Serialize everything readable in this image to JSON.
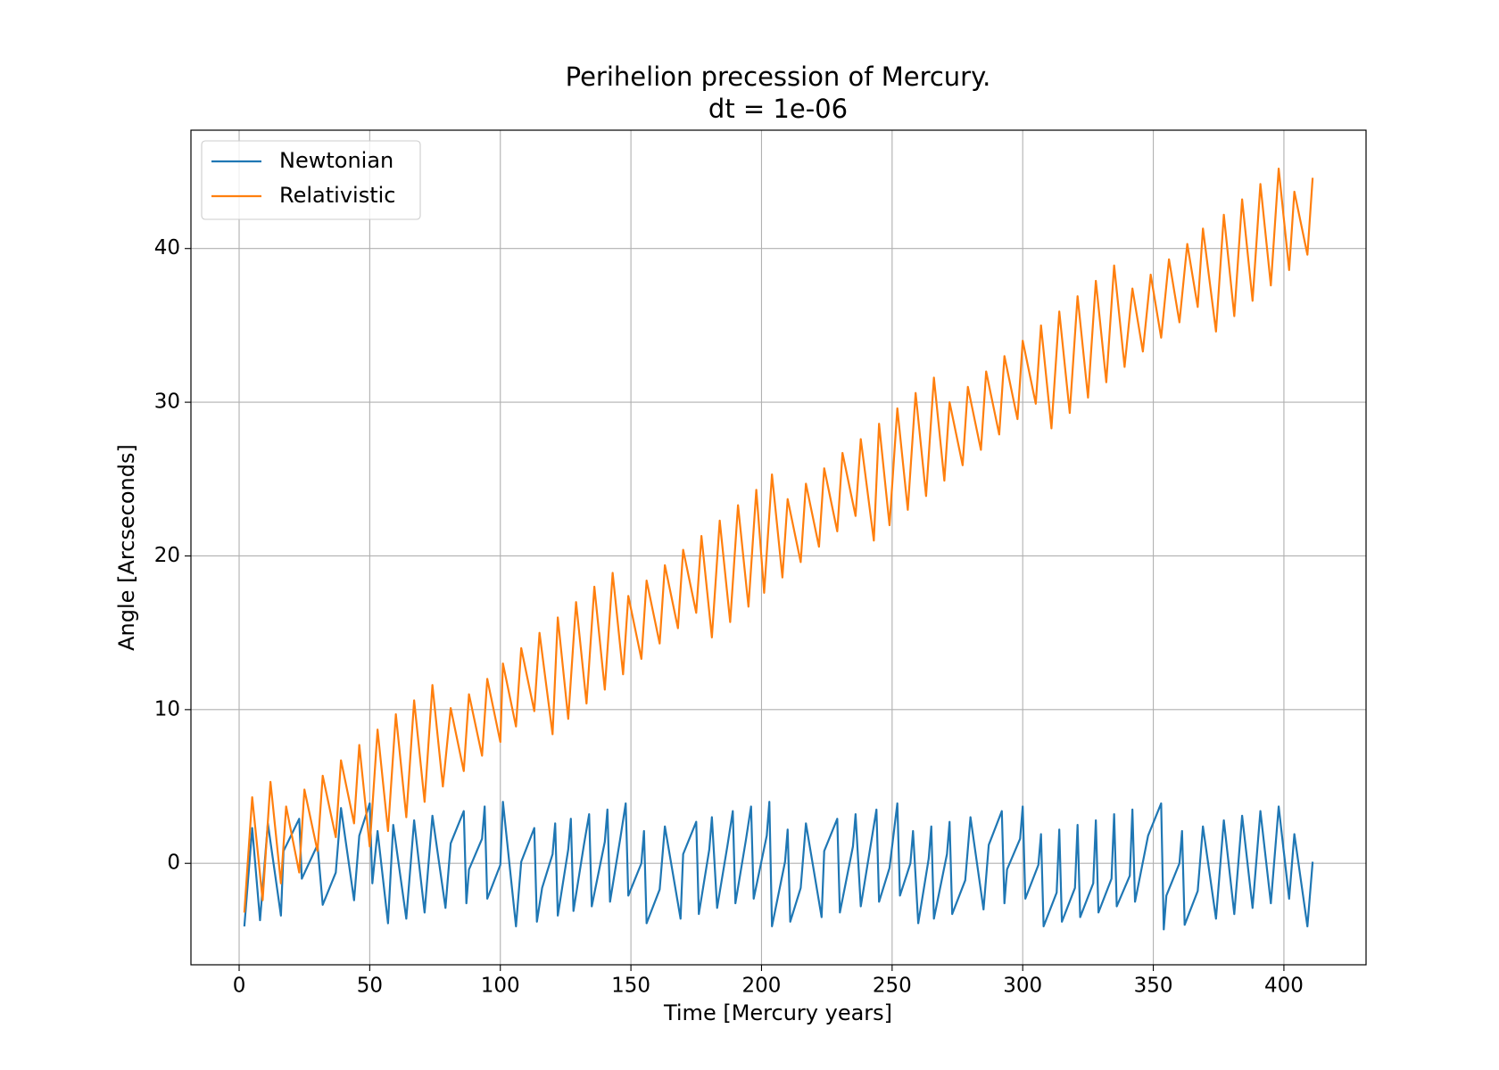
{
  "chart_data": {
    "type": "line",
    "title": "Perihelion precession of Mercury.",
    "subtitle": "dt = 1e-06",
    "x_label": "Time [Mercury years]",
    "y_label": "Angle [Arcseconds]",
    "xlim": [
      -18.45,
      431.45
    ],
    "ylim": [
      -6.6,
      47.7
    ],
    "xticks": [
      0,
      50,
      100,
      150,
      200,
      250,
      300,
      350,
      400
    ],
    "yticks": [
      0,
      10,
      20,
      30,
      40
    ],
    "grid": true,
    "legend_location": "upper left",
    "series": [
      {
        "name": "Newtonian",
        "color": "#1f77b4",
        "x": [
          2,
          5,
          8,
          11,
          16,
          17,
          23,
          24,
          30,
          32,
          37,
          39,
          44,
          46,
          50,
          51,
          53,
          57,
          59,
          64,
          67,
          71,
          74,
          79,
          81,
          86,
          87,
          88,
          93,
          94,
          95,
          100,
          101,
          106,
          108,
          113,
          114,
          116,
          120,
          121,
          122,
          126,
          127,
          128,
          132,
          134,
          135,
          140,
          141,
          142,
          146,
          148,
          149,
          154,
          155,
          156,
          161,
          163,
          169,
          170,
          175,
          176,
          180,
          181,
          183,
          187,
          189,
          190,
          194,
          196,
          197,
          202,
          203,
          204,
          209,
          210,
          211,
          215,
          217,
          223,
          224,
          229,
          230,
          235,
          236,
          238,
          242,
          244,
          245,
          249,
          252,
          253,
          257,
          258,
          260,
          264,
          265,
          266,
          271,
          272,
          273,
          278,
          280,
          285,
          287,
          292,
          293,
          294,
          299,
          300,
          301,
          306,
          307,
          308,
          313,
          314,
          315,
          320,
          321,
          322,
          327,
          328,
          329,
          334,
          335,
          336,
          341,
          342,
          343,
          348,
          353,
          354,
          355,
          360,
          361,
          362,
          367,
          369,
          374,
          377,
          381,
          384,
          388,
          391,
          395,
          398,
          402,
          404,
          409,
          411
        ],
        "values": [
          -4.1,
          2.3,
          -3.7,
          2.6,
          -3.4,
          0.8,
          2.9,
          -1.0,
          1.2,
          -2.7,
          -0.6,
          3.6,
          -2.4,
          1.8,
          3.9,
          -1.3,
          2.1,
          -3.9,
          2.5,
          -3.6,
          2.8,
          -3.2,
          3.1,
          -2.9,
          1.3,
          3.4,
          -2.6,
          -0.4,
          1.6,
          3.7,
          -2.3,
          -0.1,
          4.0,
          -4.1,
          0.1,
          2.3,
          -3.8,
          -1.6,
          0.6,
          2.6,
          -3.4,
          0.9,
          2.9,
          -3.1,
          1.2,
          3.2,
          -2.8,
          1.4,
          3.5,
          -2.5,
          1.7,
          3.9,
          -2.1,
          0,
          2.1,
          -3.9,
          -1.7,
          2.4,
          -3.6,
          0.6,
          2.7,
          -3.3,
          0.9,
          3.0,
          -2.9,
          1.2,
          3.4,
          -2.6,
          1.5,
          3.7,
          -2.3,
          1.8,
          4.0,
          -4.1,
          0.1,
          2.2,
          -3.8,
          -1.6,
          2.6,
          -3.5,
          0.8,
          2.9,
          -3.2,
          1.1,
          3.2,
          -2.8,
          1.4,
          3.5,
          -2.5,
          -0.3,
          3.9,
          -2.1,
          0,
          2.1,
          -3.9,
          0.3,
          2.4,
          -3.6,
          0.6,
          2.7,
          -3.3,
          -1.1,
          3.0,
          -3.0,
          1.2,
          3.4,
          -2.6,
          -0.4,
          1.6,
          3.7,
          -2.3,
          -0.1,
          1.9,
          -4.1,
          -1.9,
          2.2,
          -3.8,
          -1.6,
          2.5,
          -3.5,
          -1.3,
          2.8,
          -3.2,
          -1.0,
          3.2,
          -2.8,
          -0.8,
          3.5,
          -2.5,
          1.8,
          3.9,
          -4.3,
          -2.1,
          0,
          2.1,
          -4.0,
          -1.8,
          2.4,
          -3.6,
          2.8,
          -3.3,
          3.1,
          -2.9,
          3.4,
          -2.6,
          3.7,
          -2.3,
          1.9,
          -4.1,
          0.1
        ]
      },
      {
        "name": "Relativistic",
        "color": "#ff7f0e",
        "x": [
          2,
          5,
          9,
          12,
          16,
          18,
          23,
          25,
          30,
          32,
          37,
          39,
          44,
          46,
          50,
          53,
          57,
          60,
          64,
          67,
          71,
          74,
          78,
          81,
          86,
          88,
          93,
          95,
          100,
          101,
          106,
          108,
          113,
          115,
          120,
          122,
          126,
          129,
          133,
          136,
          140,
          143,
          147,
          149,
          154,
          156,
          161,
          163,
          168,
          170,
          175,
          177,
          181,
          184,
          188,
          191,
          195,
          198,
          201,
          204,
          208,
          210,
          215,
          217,
          222,
          224,
          229,
          231,
          236,
          238,
          243,
          245,
          249,
          252,
          256,
          259,
          263,
          266,
          270,
          272,
          277,
          279,
          284,
          286,
          291,
          293,
          298,
          300,
          305,
          307,
          311,
          314,
          318,
          321,
          325,
          328,
          332,
          335,
          339,
          342,
          346,
          349,
          353,
          356,
          360,
          363,
          367,
          369,
          374,
          377,
          381,
          384,
          388,
          391,
          395,
          398,
          402,
          404,
          409,
          411
        ],
        "values": [
          -3.2,
          4.3,
          -2.4,
          5.3,
          -1.3,
          3.7,
          -0.6,
          4.8,
          0.8,
          5.7,
          1.7,
          6.7,
          2.6,
          7.7,
          1.1,
          8.7,
          2.1,
          9.7,
          3.0,
          10.6,
          4.0,
          11.6,
          5.0,
          10.1,
          6.0,
          11.0,
          7.0,
          12.0,
          7.9,
          13.0,
          8.9,
          14.0,
          9.9,
          15.0,
          8.4,
          16.0,
          9.4,
          17.0,
          10.4,
          18.0,
          11.3,
          18.9,
          12.3,
          17.4,
          13.3,
          18.4,
          14.3,
          19.4,
          15.3,
          20.4,
          16.3,
          21.3,
          14.7,
          22.3,
          15.7,
          23.3,
          16.7,
          24.3,
          17.6,
          25.3,
          18.6,
          23.7,
          19.6,
          24.7,
          20.6,
          25.7,
          21.6,
          26.7,
          22.6,
          27.6,
          21.0,
          28.6,
          22.0,
          29.6,
          23.0,
          30.6,
          23.9,
          31.6,
          24.9,
          30.0,
          25.9,
          31.0,
          26.9,
          32.0,
          27.9,
          33.0,
          28.9,
          34.0,
          29.9,
          35.0,
          28.3,
          35.9,
          29.3,
          36.9,
          30.3,
          37.9,
          31.3,
          38.9,
          32.3,
          37.4,
          33.3,
          38.3,
          34.2,
          39.3,
          35.2,
          40.3,
          36.2,
          41.3,
          34.6,
          42.2,
          35.6,
          43.2,
          36.6,
          44.2,
          37.6,
          45.2,
          38.6,
          43.7,
          39.6,
          44.6
        ]
      }
    ]
  }
}
